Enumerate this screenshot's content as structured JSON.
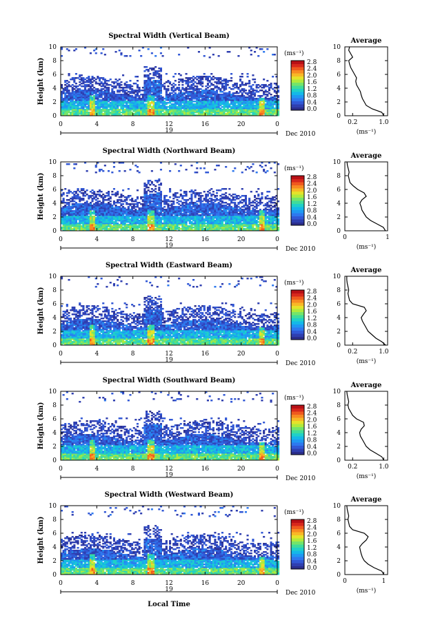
{
  "figure": {
    "xlabel": "Local Time",
    "date_label": "Dec 2010",
    "day_label": "19"
  },
  "colorbar": {
    "unit": "(ms⁻¹)",
    "ticks": [
      "0.0",
      "0.4",
      "0.8",
      "1.2",
      "1.6",
      "2.0",
      "2.4",
      "2.8"
    ],
    "range": [
      0,
      3.0
    ],
    "colors": [
      "#2b2e8c",
      "#2f3fb0",
      "#3158d6",
      "#2e78ee",
      "#1f98f2",
      "#14b8e8",
      "#20d0c8",
      "#3fdc9a",
      "#74e46a",
      "#b0ea3c",
      "#e6e22a",
      "#f8b826",
      "#f88a22",
      "#ef5a1e",
      "#d8281c",
      "#b81016"
    ]
  },
  "chart_data": [
    {
      "type": "heatmap",
      "title": "Spectral Width (Vertical Beam)",
      "ylabel": "Height (km)",
      "xlim": [
        0,
        24
      ],
      "ylim": [
        0,
        10
      ],
      "xticks": [
        "0",
        "4",
        "8",
        "12",
        "16",
        "20",
        "0"
      ],
      "yticks": [
        "0",
        "2",
        "4",
        "6",
        "8",
        "10"
      ],
      "profile": {
        "title": "Average",
        "xlabel": "(ms⁻¹)",
        "xticks": [
          "0.2",
          "1.0"
        ],
        "xlim": [
          0,
          1.1
        ],
        "height": [
          0,
          0.5,
          1,
          1.5,
          2,
          2.5,
          3,
          3.5,
          4,
          4.5,
          5,
          5.5,
          6,
          6.5,
          7,
          7.5,
          8,
          8.5,
          9,
          9.5,
          10
        ],
        "values": [
          1.0,
          0.95,
          0.7,
          0.55,
          0.5,
          0.45,
          0.42,
          0.4,
          0.35,
          0.3,
          0.28,
          0.3,
          0.25,
          0.2,
          0.15,
          0.12,
          0.1,
          0.2,
          0.15,
          0.1,
          0.12
        ]
      }
    },
    {
      "type": "heatmap",
      "title": "Spectral Width (Northward Beam)",
      "ylabel": "Height (km)",
      "xlim": [
        0,
        24
      ],
      "ylim": [
        0,
        10
      ],
      "xticks": [
        "0",
        "4",
        "8",
        "12",
        "16",
        "20",
        "0"
      ],
      "yticks": [
        "0",
        "2",
        "4",
        "6",
        "8",
        "10"
      ],
      "profile": {
        "title": "Average",
        "xlabel": "(ms⁻¹)",
        "xticks": [
          "0",
          "1"
        ],
        "xlim": [
          0,
          1.0
        ],
        "height": [
          0,
          0.5,
          1,
          1.5,
          2,
          2.5,
          3,
          3.5,
          4,
          4.5,
          5,
          5.5,
          6,
          6.5,
          7,
          7.5,
          8,
          8.5,
          9,
          9.5,
          10
        ],
        "values": [
          0.95,
          0.9,
          0.75,
          0.6,
          0.5,
          0.45,
          0.4,
          0.38,
          0.35,
          0.4,
          0.5,
          0.45,
          0.3,
          0.2,
          0.12,
          0.1,
          0.08,
          0.1,
          0.08,
          0.06,
          0.05
        ]
      }
    },
    {
      "type": "heatmap",
      "title": "Spectral Width (Eastward Beam)",
      "ylabel": "Height (km)",
      "xlim": [
        0,
        24
      ],
      "ylim": [
        0,
        10
      ],
      "xticks": [
        "0",
        "4",
        "8",
        "12",
        "16",
        "20",
        "0"
      ],
      "yticks": [
        "0",
        "2",
        "4",
        "6",
        "8",
        "10"
      ],
      "profile": {
        "title": "Average",
        "xlabel": "(ms⁻¹)",
        "xticks": [
          "0.2",
          "1.0"
        ],
        "xlim": [
          0,
          1.1
        ],
        "height": [
          0,
          0.5,
          1,
          1.5,
          2,
          2.5,
          3,
          3.5,
          4,
          4.5,
          5,
          5.5,
          6,
          6.5,
          7,
          7.5,
          8,
          8.5,
          9,
          9.5,
          10
        ],
        "values": [
          1.05,
          0.95,
          0.8,
          0.7,
          0.6,
          0.55,
          0.5,
          0.45,
          0.42,
          0.48,
          0.55,
          0.5,
          0.2,
          0.12,
          0.1,
          0.08,
          0.1,
          0.08,
          0.06,
          0.05,
          0.05
        ]
      }
    },
    {
      "type": "heatmap",
      "title": "Spectral Width (Southward Beam)",
      "ylabel": "Height (km)",
      "xlim": [
        0,
        24
      ],
      "ylim": [
        0,
        10
      ],
      "xticks": [
        "0",
        "4",
        "8",
        "12",
        "16",
        "20",
        "0"
      ],
      "yticks": [
        "0",
        "2",
        "4",
        "6",
        "8",
        "10"
      ],
      "profile": {
        "title": "Average",
        "xlabel": "(ms⁻¹)",
        "xticks": [
          "0.2",
          "1.0"
        ],
        "xlim": [
          0,
          1.1
        ],
        "height": [
          0,
          0.5,
          1,
          1.5,
          2,
          2.5,
          3,
          3.5,
          4,
          4.5,
          5,
          5.5,
          6,
          6.5,
          7,
          7.5,
          8,
          8.5,
          9,
          9.5,
          10
        ],
        "values": [
          1.0,
          0.95,
          0.8,
          0.65,
          0.55,
          0.5,
          0.45,
          0.4,
          0.38,
          0.42,
          0.5,
          0.48,
          0.3,
          0.2,
          0.15,
          0.1,
          0.08,
          0.1,
          0.08,
          0.06,
          0.05
        ]
      }
    },
    {
      "type": "heatmap",
      "title": "Spectral Width (Westward Beam)",
      "ylabel": "Height (km)",
      "xlim": [
        0,
        24
      ],
      "ylim": [
        0,
        10
      ],
      "xticks": [
        "0",
        "4",
        "8",
        "12",
        "16",
        "20",
        "0"
      ],
      "yticks": [
        "0",
        "2",
        "4",
        "6",
        "8",
        "10"
      ],
      "profile": {
        "title": "Average",
        "xlabel": "(ms⁻¹)",
        "xticks": [
          "0",
          "1"
        ],
        "xlim": [
          0,
          1.1
        ],
        "height": [
          0,
          0.5,
          1,
          1.5,
          2,
          2.5,
          3,
          3.5,
          4,
          4.5,
          5,
          5.5,
          6,
          6.5,
          7,
          7.5,
          8,
          8.5,
          9,
          9.5,
          10
        ],
        "values": [
          1.0,
          0.95,
          0.75,
          0.6,
          0.5,
          0.45,
          0.42,
          0.4,
          0.38,
          0.45,
          0.55,
          0.6,
          0.5,
          0.2,
          0.12,
          0.1,
          0.08,
          0.1,
          0.08,
          0.06,
          0.05
        ]
      }
    }
  ]
}
